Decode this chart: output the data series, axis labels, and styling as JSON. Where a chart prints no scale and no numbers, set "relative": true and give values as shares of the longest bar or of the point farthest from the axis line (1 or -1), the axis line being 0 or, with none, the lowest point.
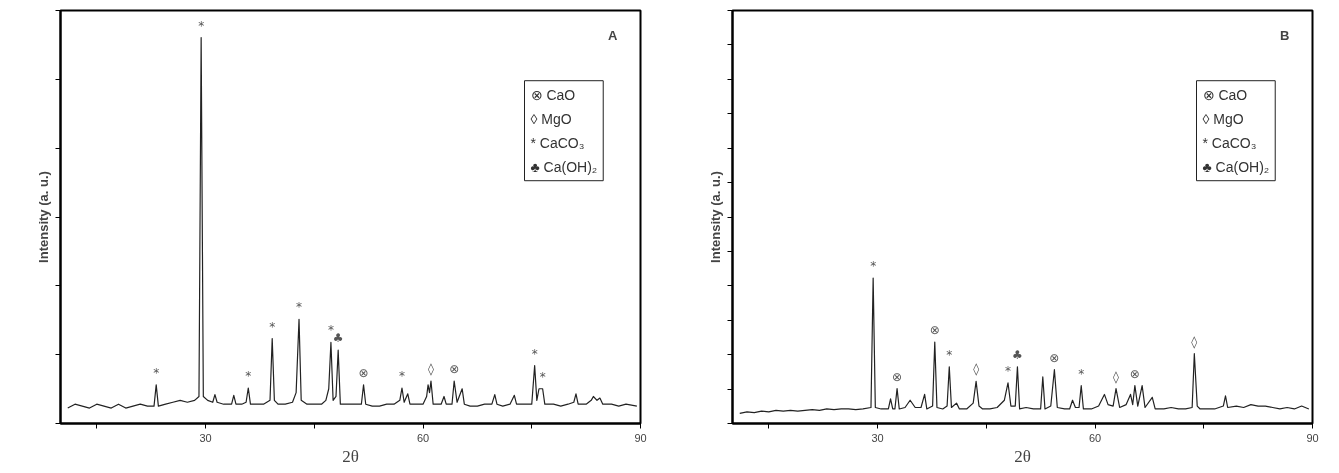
{
  "chart_data": [
    {
      "type": "line",
      "title": "A",
      "xlabel": "2θ",
      "ylabel": "Intensity (a. u.)",
      "relative": true,
      "tick_labels": "x",
      "grid": false,
      "xlim": [
        10,
        90
      ],
      "xticks": [
        {
          "value": 15,
          "label": null
        },
        30,
        {
          "value": 45,
          "label": null
        },
        60,
        {
          "value": 75,
          "label": null
        },
        90
      ],
      "ylim": [
        0,
        1.07
      ],
      "series": [
        {
          "color": "#222222",
          "x": [
            11,
            12,
            13,
            14,
            15,
            16,
            17,
            18,
            19,
            20,
            21,
            22,
            22.9,
            23.2,
            23.5,
            24.5,
            25.5,
            26.5,
            27.5,
            28.5,
            29.1,
            29.4,
            29.7,
            30.3,
            31,
            31.3,
            31.6,
            32.5,
            33.6,
            33.9,
            34.2,
            35,
            35.6,
            35.9,
            36.2,
            37,
            38,
            38.9,
            39.2,
            39.5,
            40,
            41,
            42,
            42.5,
            42.9,
            43.2,
            44,
            45,
            46,
            46.6,
            47.0,
            47.3,
            47.6,
            48.0,
            48.3,
            48.6,
            49.5,
            50.5,
            51.5,
            51.8,
            52.1,
            53,
            54,
            55,
            56,
            56.8,
            57.1,
            57.4,
            57.9,
            58.2,
            59,
            60,
            60.5,
            60.7,
            60.9,
            61.1,
            61.4,
            62.5,
            62.9,
            63.2,
            64,
            64.3,
            64.7,
            65.4,
            65.7,
            66.5,
            67.5,
            68.5,
            69.5,
            69.9,
            70.2,
            71,
            72,
            72.6,
            72.9,
            74,
            75,
            75.4,
            75.7,
            76.0,
            76.5,
            76.8,
            78,
            79,
            80,
            80.8,
            81.1,
            81.4,
            82.5,
            83.2,
            83.5,
            84,
            84.4,
            84.8,
            86,
            87,
            88,
            89.5
          ],
          "values": [
            0.04,
            0.05,
            0.045,
            0.04,
            0.05,
            0.045,
            0.04,
            0.05,
            0.04,
            0.045,
            0.05,
            0.045,
            0.045,
            0.1,
            0.045,
            0.05,
            0.055,
            0.06,
            0.055,
            0.06,
            0.07,
            1.0,
            0.07,
            0.06,
            0.055,
            0.075,
            0.055,
            0.05,
            0.05,
            0.073,
            0.05,
            0.05,
            0.055,
            0.092,
            0.05,
            0.05,
            0.05,
            0.06,
            0.22,
            0.06,
            0.05,
            0.05,
            0.055,
            0.08,
            0.27,
            0.06,
            0.05,
            0.05,
            0.05,
            0.06,
            0.09,
            0.21,
            0.06,
            0.07,
            0.19,
            0.05,
            0.05,
            0.05,
            0.05,
            0.1,
            0.05,
            0.045,
            0.045,
            0.05,
            0.05,
            0.06,
            0.092,
            0.055,
            0.077,
            0.05,
            0.05,
            0.05,
            0.07,
            0.1,
            0.08,
            0.11,
            0.05,
            0.05,
            0.07,
            0.05,
            0.05,
            0.11,
            0.055,
            0.09,
            0.05,
            0.045,
            0.045,
            0.05,
            0.05,
            0.075,
            0.05,
            0.045,
            0.05,
            0.073,
            0.05,
            0.05,
            0.05,
            0.15,
            0.06,
            0.09,
            0.09,
            0.05,
            0.05,
            0.045,
            0.05,
            0.055,
            0.077,
            0.05,
            0.05,
            0.06,
            0.07,
            0.06,
            0.066,
            0.05,
            0.05,
            0.045,
            0.05,
            0.045
          ]
        }
      ],
      "annotations": [
        "⊗ CaO",
        "◊ MgO",
        "* CaCO₃",
        "♣ Ca(OH)₂",
        {
          "text": "*",
          "x": 23.2,
          "y": 0.1
        },
        {
          "text": "*",
          "x": 29.4,
          "y": 1.0
        },
        {
          "text": "*",
          "x": 35.9,
          "y": 0.092
        },
        {
          "text": "*",
          "x": 39.2,
          "y": 0.22
        },
        {
          "text": "*",
          "x": 42.9,
          "y": 0.27
        },
        {
          "text": "*",
          "x": 47.3,
          "y": 0.21
        },
        {
          "text": "♣",
          "x": 48.3,
          "y": 0.19
        },
        {
          "text": "⊗",
          "x": 51.8,
          "y": 0.1
        },
        {
          "text": "*",
          "x": 57.1,
          "y": 0.092
        },
        {
          "text": "◊",
          "x": 61.1,
          "y": 0.11
        },
        {
          "text": "⊗",
          "x": 64.3,
          "y": 0.11
        },
        {
          "text": "*",
          "x": 75.4,
          "y": 0.15
        },
        {
          "text": "*",
          "x": 76.5,
          "y": 0.09
        }
      ]
    },
    {
      "type": "line",
      "title": "B",
      "xlabel": "2θ",
      "ylabel": "Intensity (a. u.)",
      "relative": true,
      "tick_labels": "x",
      "grid": false,
      "xlim": [
        10,
        90
      ],
      "xticks": [
        {
          "value": 15,
          "label": null
        },
        30,
        {
          "value": 45,
          "label": null
        },
        60,
        {
          "value": 75,
          "label": null
        },
        90
      ],
      "ylim": [
        0,
        2.84
      ],
      "series": [
        {
          "color": "#222222",
          "x": [
            11,
            12,
            13,
            14,
            15,
            16,
            17,
            18,
            19,
            20,
            21,
            22,
            23,
            24,
            25,
            26,
            27,
            28,
            29.1,
            29.4,
            29.7,
            30.5,
            31.5,
            31.8,
            32.1,
            32.4,
            32.7,
            33,
            33.8,
            34.5,
            35.2,
            36,
            36.5,
            36.8,
            37.6,
            37.9,
            38.2,
            39,
            39.6,
            39.9,
            40.2,
            40.9,
            41.3,
            42.3,
            43.2,
            43.6,
            44,
            44.5,
            45.5,
            46.5,
            47.5,
            48.0,
            48.4,
            49,
            49.3,
            49.6,
            50.5,
            51.5,
            52.5,
            52.8,
            53.1,
            53.9,
            54.4,
            54.8,
            55.8,
            56.5,
            56.9,
            57.3,
            57.8,
            58.1,
            58.4,
            59.5,
            60.5,
            61.3,
            61.8,
            62.5,
            62.9,
            63.4,
            64.3,
            64.9,
            65.2,
            65.5,
            65.9,
            66.5,
            66.9,
            67.9,
            68.3,
            69.5,
            70.5,
            71.5,
            72.5,
            73.4,
            73.7,
            74.1,
            74.5,
            75.5,
            76.5,
            77.7,
            78,
            78.3,
            79.5,
            80.5,
            81.5,
            82.5,
            83.5,
            84.5,
            85.5,
            86.5,
            87.5,
            88.5,
            89.5
          ],
          "values": [
            0.07,
            0.08,
            0.075,
            0.085,
            0.08,
            0.09,
            0.085,
            0.09,
            0.085,
            0.09,
            0.095,
            0.09,
            0.1,
            0.095,
            0.1,
            0.1,
            0.095,
            0.1,
            0.11,
            1.0,
            0.11,
            0.1,
            0.1,
            0.17,
            0.1,
            0.1,
            0.24,
            0.1,
            0.11,
            0.16,
            0.11,
            0.11,
            0.2,
            0.1,
            0.12,
            0.56,
            0.11,
            0.1,
            0.12,
            0.39,
            0.11,
            0.14,
            0.1,
            0.1,
            0.14,
            0.29,
            0.12,
            0.1,
            0.1,
            0.11,
            0.16,
            0.28,
            0.12,
            0.12,
            0.39,
            0.1,
            0.11,
            0.1,
            0.1,
            0.32,
            0.1,
            0.12,
            0.37,
            0.11,
            0.1,
            0.1,
            0.16,
            0.11,
            0.11,
            0.26,
            0.1,
            0.1,
            0.12,
            0.2,
            0.13,
            0.12,
            0.24,
            0.11,
            0.13,
            0.2,
            0.13,
            0.26,
            0.12,
            0.26,
            0.11,
            0.18,
            0.1,
            0.1,
            0.11,
            0.1,
            0.1,
            0.11,
            0.48,
            0.12,
            0.1,
            0.1,
            0.1,
            0.12,
            0.19,
            0.11,
            0.12,
            0.11,
            0.13,
            0.12,
            0.12,
            0.11,
            0.1,
            0.11,
            0.1,
            0.12,
            0.1
          ]
        }
      ],
      "annotations": [
        "⊗ CaO",
        "◊ MgO",
        "* CaCO₃",
        "♣ Ca(OH)₂",
        {
          "text": "*",
          "x": 29.4,
          "y": 1.0
        },
        {
          "text": "⊗",
          "x": 32.7,
          "y": 0.24
        },
        {
          "text": "⊗",
          "x": 37.9,
          "y": 0.56
        },
        {
          "text": "*",
          "x": 39.9,
          "y": 0.39
        },
        {
          "text": "◊",
          "x": 43.6,
          "y": 0.29
        },
        {
          "text": "*",
          "x": 48.0,
          "y": 0.28
        },
        {
          "text": "♣",
          "x": 49.3,
          "y": 0.39
        },
        {
          "text": "⊗",
          "x": 54.4,
          "y": 0.37
        },
        {
          "text": "*",
          "x": 58.1,
          "y": 0.26
        },
        {
          "text": "◊",
          "x": 62.9,
          "y": 0.24
        },
        {
          "text": "⊗",
          "x": 65.5,
          "y": 0.26
        },
        {
          "text": "◊",
          "x": 73.7,
          "y": 0.48
        }
      ]
    }
  ]
}
